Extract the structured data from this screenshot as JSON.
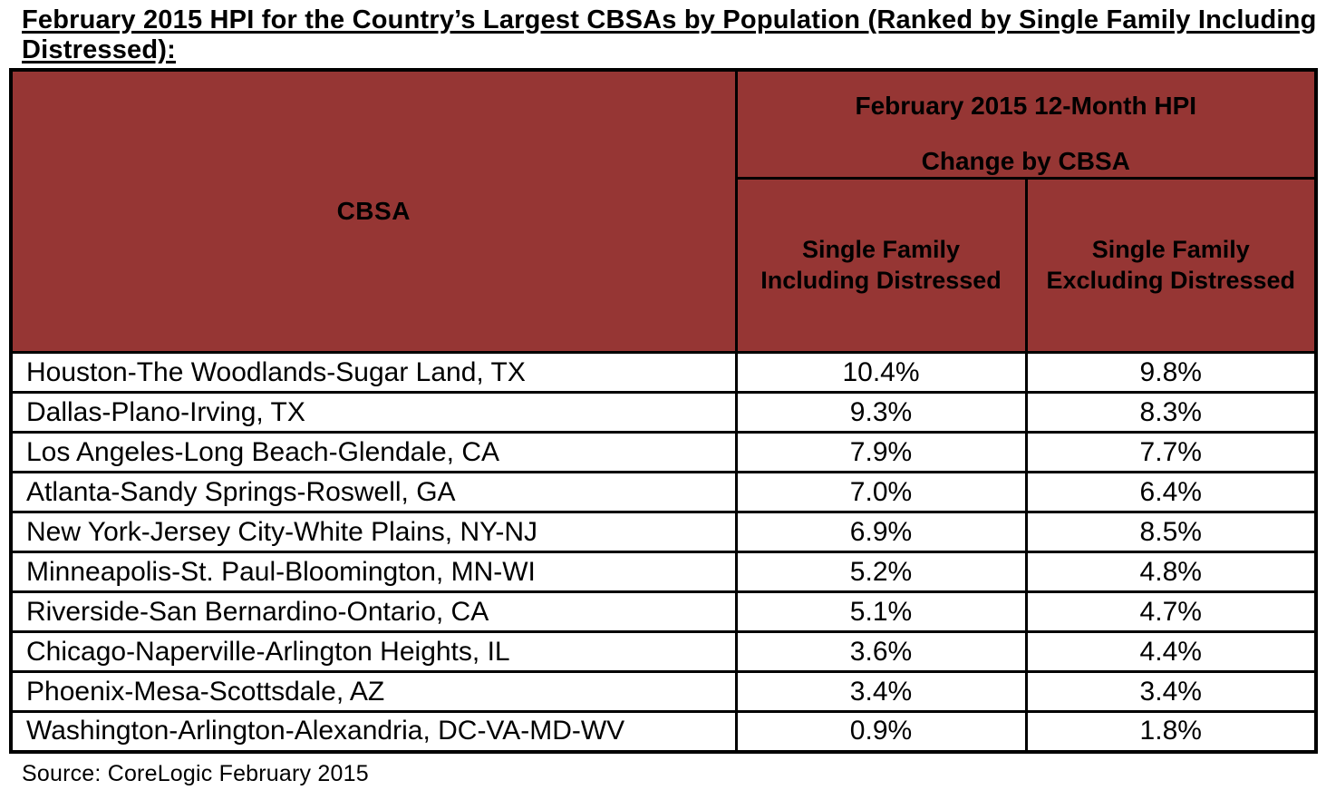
{
  "title": "February 2015 HPI for the Country’s Largest CBSAs by Population (Ranked by Single Family Including Distressed):",
  "source": "Source: CoreLogic February 2015",
  "colors": {
    "header_background": "#963634",
    "border": "#000000",
    "text": "#000000",
    "page_background": "#ffffff"
  },
  "table": {
    "header": {
      "cbsa_label": "CBSA",
      "group_line1": "February 2015 12-Month HPI",
      "group_line2": "Change by CBSA",
      "col_including": "Single Family\nIncluding Distressed",
      "col_excluding": "Single Family\nExcluding Distressed"
    },
    "rows": [
      {
        "cbsa": "Houston-The Woodlands-Sugar Land, TX",
        "including": "10.4%",
        "excluding": "9.8%"
      },
      {
        "cbsa": "Dallas-Plano-Irving, TX",
        "including": "9.3%",
        "excluding": "8.3%"
      },
      {
        "cbsa": "Los Angeles-Long Beach-Glendale, CA",
        "including": "7.9%",
        "excluding": "7.7%"
      },
      {
        "cbsa": "Atlanta-Sandy Springs-Roswell, GA",
        "including": "7.0%",
        "excluding": "6.4%"
      },
      {
        "cbsa": "New York-Jersey City-White Plains, NY-NJ",
        "including": "6.9%",
        "excluding": "8.5%"
      },
      {
        "cbsa": "Minneapolis-St. Paul-Bloomington, MN-WI",
        "including": "5.2%",
        "excluding": "4.8%"
      },
      {
        "cbsa": "Riverside-San Bernardino-Ontario, CA",
        "including": "5.1%",
        "excluding": "4.7%"
      },
      {
        "cbsa": "Chicago-Naperville-Arlington Heights, IL",
        "including": "3.6%",
        "excluding": "4.4%"
      },
      {
        "cbsa": "Phoenix-Mesa-Scottsdale, AZ",
        "including": "3.4%",
        "excluding": "3.4%"
      },
      {
        "cbsa": "Washington-Arlington-Alexandria, DC-VA-MD-WV",
        "including": "0.9%",
        "excluding": "1.8%"
      }
    ]
  }
}
